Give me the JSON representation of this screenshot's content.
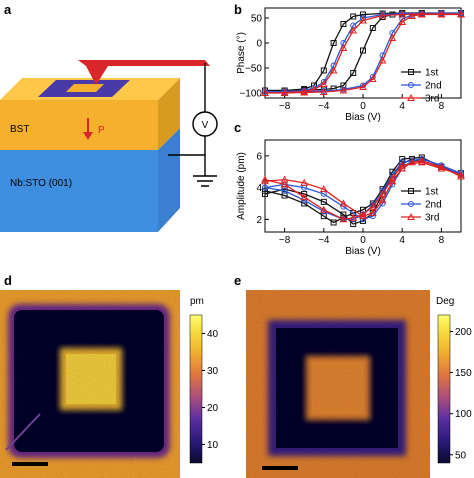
{
  "panels": {
    "a": "a",
    "b": "b",
    "c": "c",
    "d": "d",
    "e": "e"
  },
  "schematic": {
    "layer_top": "BST",
    "layer_bottom": "Nb:STO (001)",
    "polarization": "P",
    "meter": "V",
    "colors": {
      "bst": "#f5b12e",
      "substrate": "#3f8fe0",
      "tip": "#d9262a",
      "pattern_outer": "#4a3aa8",
      "pattern_inner": "#f5b12e"
    }
  },
  "chart_data": [
    {
      "panel": "b",
      "type": "line",
      "xlabel": "Bias (V)",
      "ylabel": "Phase (°)",
      "xlim": [
        -10,
        10
      ],
      "ylim": [
        -110,
        70
      ],
      "xticks": [
        -8,
        -4,
        0,
        4,
        8
      ],
      "xtick_labels": [
        "−8",
        "−4",
        "0",
        "4",
        "8"
      ],
      "yticks": [
        -100,
        -50,
        0,
        50
      ],
      "ytick_labels": [
        "−100",
        "−50",
        "0",
        "50"
      ],
      "legend_position": "bottom-right",
      "series": [
        {
          "name": "1st",
          "color": "#111111",
          "marker": "square",
          "up": {
            "x": [
              -10,
              -8,
              -6,
              -4,
              -3,
              -2,
              -1,
              0,
              1,
              2,
              3,
              4,
              6,
              8,
              10
            ],
            "y": [
              -95,
              -95,
              -94,
              -93,
              -91,
              -85,
              -60,
              -15,
              30,
              52,
              57,
              58,
              58,
              58,
              58
            ]
          },
          "down": {
            "x": [
              10,
              8,
              6,
              4,
              2,
              0,
              -1,
              -2,
              -3,
              -4,
              -5,
              -6,
              -8,
              -10
            ],
            "y": [
              60,
              60,
              60,
              60,
              59,
              57,
              53,
              38,
              0,
              -55,
              -85,
              -92,
              -95,
              -95
            ]
          }
        },
        {
          "name": "2nd",
          "color": "#2a55d6",
          "marker": "circle",
          "up": {
            "x": [
              -10,
              -8,
              -6,
              -4,
              -2,
              0,
              1,
              2,
              3,
              4,
              5,
              6,
              8,
              10
            ],
            "y": [
              -98,
              -98,
              -97,
              -96,
              -93,
              -85,
              -68,
              -25,
              20,
              48,
              56,
              58,
              58,
              58
            ]
          },
          "down": {
            "x": [
              10,
              8,
              6,
              4,
              2,
              0,
              -1,
              -2,
              -3,
              -4,
              -5,
              -6,
              -8,
              -10
            ],
            "y": [
              60,
              60,
              59,
              59,
              57,
              50,
              35,
              0,
              -45,
              -78,
              -90,
              -95,
              -97,
              -98
            ]
          }
        },
        {
          "name": "3rd",
          "color": "#e02020",
          "marker": "triangle",
          "up": {
            "x": [
              -10,
              -8,
              -6,
              -4,
              -2,
              0,
              1,
              2,
              3,
              4,
              5,
              6,
              8,
              10
            ],
            "y": [
              -100,
              -100,
              -99,
              -98,
              -95,
              -88,
              -72,
              -35,
              10,
              42,
              54,
              57,
              57,
              57
            ]
          },
          "down": {
            "x": [
              10,
              8,
              6,
              4,
              2,
              0,
              -1,
              -2,
              -3,
              -4,
              -5,
              -6,
              -8,
              -10
            ],
            "y": [
              58,
              58,
              58,
              57,
              55,
              45,
              25,
              -10,
              -55,
              -82,
              -93,
              -97,
              -99,
              -100
            ]
          }
        }
      ]
    },
    {
      "panel": "c",
      "type": "line",
      "xlabel": "Bias (V)",
      "ylabel": "Amplitude (pm)",
      "xlim": [
        -10,
        10
      ],
      "ylim": [
        1.2,
        7
      ],
      "xticks": [
        -8,
        -4,
        0,
        4,
        8
      ],
      "xtick_labels": [
        "−8",
        "−4",
        "0",
        "4",
        "8"
      ],
      "yticks": [
        2,
        4,
        6
      ],
      "ytick_labels": [
        "2",
        "4",
        "6"
      ],
      "legend_position": "bottom-right",
      "series": [
        {
          "name": "1st",
          "color": "#111111",
          "marker": "square",
          "up": {
            "x": [
              -10,
              -8,
              -6,
              -4,
              -2,
              -1,
              0,
              1,
              2,
              3,
              4,
              5,
              6,
              8,
              10
            ],
            "y": [
              3.6,
              3.9,
              3.6,
              3.1,
              2.3,
              1.7,
              1.9,
              2.4,
              3.6,
              4.8,
              5.5,
              5.8,
              5.6,
              5.2,
              4.9
            ]
          },
          "down": {
            "x": [
              10,
              8,
              6,
              4,
              3,
              2,
              1,
              0,
              -1,
              -2,
              -3,
              -4,
              -6,
              -8,
              -10
            ],
            "y": [
              4.9,
              5.3,
              5.9,
              5.8,
              5.0,
              3.9,
              3.0,
              2.6,
              2.4,
              2.1,
              1.8,
              2.2,
              3.0,
              3.5,
              3.8
            ]
          }
        },
        {
          "name": "2nd",
          "color": "#2a55d6",
          "marker": "circle",
          "up": {
            "x": [
              -10,
              -8,
              -6,
              -4,
              -2,
              0,
              1,
              2,
              3,
              4,
              5,
              6,
              8,
              10
            ],
            "y": [
              4.0,
              4.2,
              4.0,
              3.6,
              2.8,
              2.0,
              2.2,
              3.0,
              4.2,
              5.2,
              5.7,
              5.8,
              5.4,
              4.8
            ]
          },
          "down": {
            "x": [
              10,
              8,
              6,
              4,
              3,
              2,
              1,
              0,
              -1,
              -2,
              -4,
              -6,
              -8,
              -10
            ],
            "y": [
              4.9,
              5.4,
              5.8,
              5.6,
              4.8,
              3.8,
              2.9,
              2.3,
              2.0,
              2.0,
              2.5,
              3.2,
              3.8,
              4.0
            ]
          }
        },
        {
          "name": "3rd",
          "color": "#e02020",
          "marker": "triangle",
          "up": {
            "x": [
              -10,
              -8,
              -6,
              -4,
              -2,
              0,
              1,
              2,
              3,
              4,
              5,
              6,
              8,
              10
            ],
            "y": [
              4.4,
              4.5,
              4.3,
              3.9,
              3.0,
              2.2,
              2.4,
              3.2,
              4.4,
              5.2,
              5.6,
              5.7,
              5.3,
              4.7
            ]
          },
          "down": {
            "x": [
              10,
              8,
              6,
              4,
              3,
              2,
              1,
              0,
              -1,
              -2,
              -4,
              -6,
              -8,
              -10
            ],
            "y": [
              4.8,
              5.2,
              5.6,
              5.4,
              4.6,
              3.6,
              2.8,
              2.3,
              2.1,
              2.0,
              2.6,
              3.4,
              4.2,
              4.5
            ]
          }
        }
      ]
    },
    {
      "panel": "d",
      "type": "heatmap",
      "colorbar_unit": "pm",
      "colorbar_ticks": [
        10,
        20,
        30,
        40
      ],
      "colorbar_tick_labels": [
        "10",
        "20",
        "30",
        "40"
      ],
      "colorbar_range": [
        5,
        45
      ],
      "colormap": [
        "#0a0a2e",
        "#2b1a7a",
        "#5b2fa0",
        "#b0507a",
        "#e07840",
        "#f0b030",
        "#f8e040",
        "#ffff70"
      ],
      "background_value": 30,
      "frame_value": 6,
      "center_value": 40
    },
    {
      "panel": "e",
      "type": "heatmap",
      "colorbar_unit": "Deg",
      "colorbar_ticks": [
        50,
        100,
        150,
        200
      ],
      "colorbar_tick_labels": [
        "50",
        "100",
        "150",
        "200"
      ],
      "colorbar_range": [
        40,
        220
      ],
      "colormap": [
        "#0a0a2e",
        "#2b1a7a",
        "#5b2fa0",
        "#b0507a",
        "#e07840",
        "#f0b030",
        "#f8e040",
        "#ffff70"
      ],
      "background_value": 150,
      "frame_value": 45,
      "center_value": 150
    }
  ]
}
